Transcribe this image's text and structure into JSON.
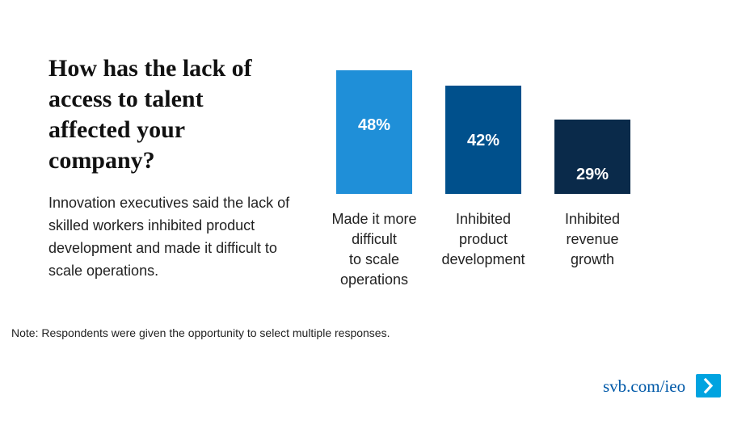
{
  "title": "How has the lack of access to talent affected your company?",
  "subtitle": "Innovation executives said the lack of skilled workers inhibited product development and made it difficult to scale operations.",
  "note": "Note: Respondents were given the opportunity to select multiple responses.",
  "footer": {
    "link_text": "svb.com/ieo",
    "button_icon": "chevron-right-icon"
  },
  "colors": {
    "bar1": "#1f8fd8",
    "bar2": "#00508c",
    "bar3": "#0a2a4a",
    "link": "#0059a8",
    "button": "#00a3e0"
  },
  "chart_data": {
    "type": "bar",
    "categories": [
      "Made it more difficult to scale operations",
      "Inhibited product development",
      "Inhibited revenue growth"
    ],
    "category_lines": [
      [
        "Made it more",
        "difficult",
        "to scale",
        "operations"
      ],
      [
        "Inhibited",
        "product",
        "development"
      ],
      [
        "Inhibited",
        "revenue",
        "growth"
      ]
    ],
    "values": [
      48,
      42,
      29
    ],
    "value_labels": [
      "48%",
      "42%",
      "29%"
    ],
    "ylim": [
      0,
      48
    ],
    "grid": false
  }
}
